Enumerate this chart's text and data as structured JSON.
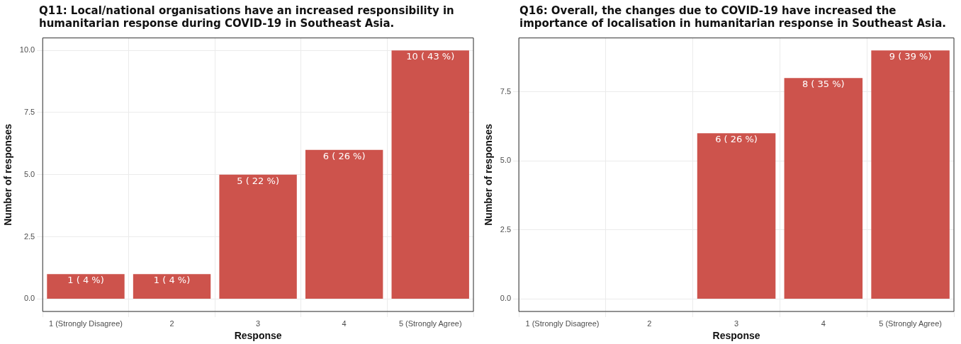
{
  "chart_data": [
    {
      "type": "bar",
      "title": "Q11: Local/national organisations have an increased responsibility in humanitarian response during COVID-19 in Southeast Asia.",
      "xlabel": "Response",
      "ylabel": "Number of responses",
      "categories": [
        "1 (Strongly Disagree)",
        "2",
        "3",
        "4",
        "5 (Strongly Agree)"
      ],
      "values": [
        1,
        1,
        5,
        6,
        10
      ],
      "color": "#cd534c",
      "value_labels": [
        "1 ( 4 %)",
        "1 ( 4 %)",
        "5 ( 22 %)",
        "6 ( 26 %)",
        "10 ( 43 %)"
      ],
      "ylim": [
        -0.5,
        10.5
      ],
      "yticks": [
        {
          "value": 0,
          "label": "0.0"
        },
        {
          "value": 2.5,
          "label": "2.5"
        },
        {
          "value": 5,
          "label": "5.0"
        },
        {
          "value": 7.5,
          "label": "7.5"
        },
        {
          "value": 10,
          "label": "10.0"
        }
      ],
      "grid": true,
      "legend": false
    },
    {
      "type": "bar",
      "title": "Q16: Overall, the changes due to COVID-19 have increased the importance of localisation in humanitarian response in Southeast Asia.",
      "xlabel": "Response",
      "ylabel": "Number of responses",
      "categories": [
        "1 (Strongly Disagree)",
        "2",
        "3",
        "4",
        "5 (Strongly Agree)"
      ],
      "values": [
        null,
        null,
        6,
        8,
        9
      ],
      "color": "#cd534c",
      "value_labels": [
        null,
        null,
        "6 ( 26 %)",
        "8 ( 35 %)",
        "9 ( 39 %)"
      ],
      "ylim": [
        -0.45,
        9.45
      ],
      "yticks": [
        {
          "value": 0,
          "label": "0.0"
        },
        {
          "value": 2.5,
          "label": "2.5"
        },
        {
          "value": 5,
          "label": "5.0"
        },
        {
          "value": 7.5,
          "label": "7.5"
        }
      ],
      "grid": true,
      "legend": false
    }
  ]
}
